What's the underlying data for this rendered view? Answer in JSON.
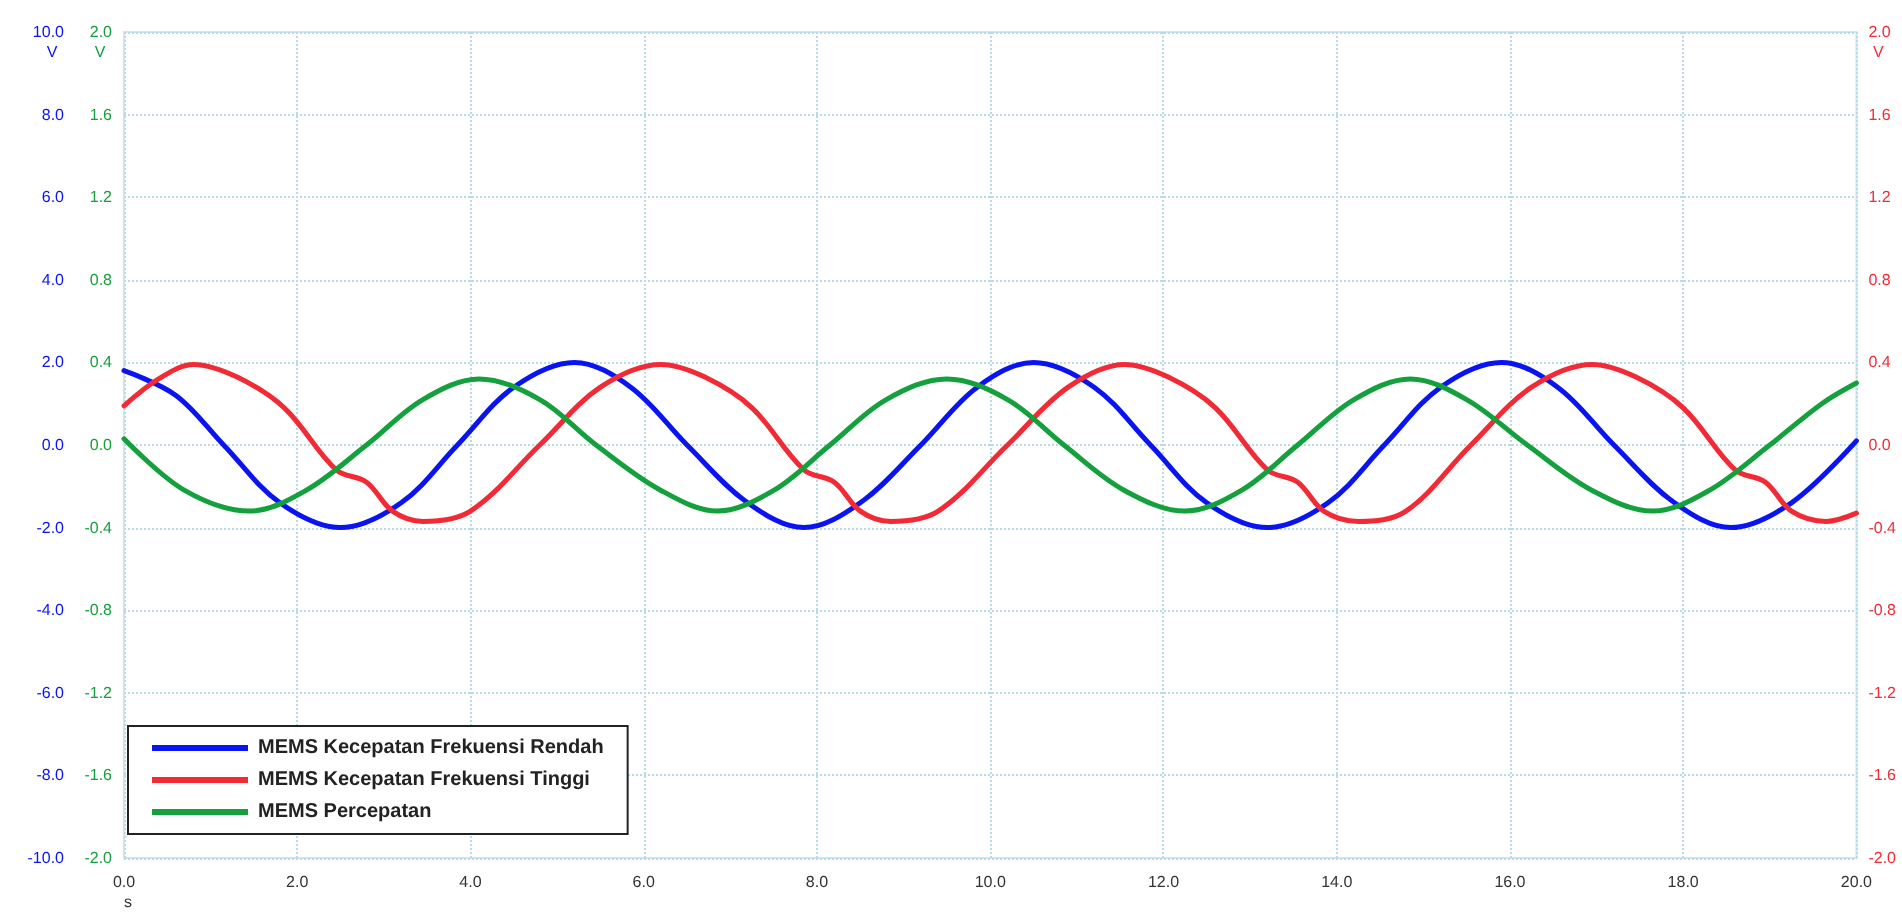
{
  "chart_data": {
    "type": "line",
    "xlabel": "s",
    "ylabel": "V",
    "y2label": "V",
    "y3label": "V",
    "xlim": [
      0,
      20
    ],
    "xticks": [
      {
        "value": 0,
        "label": "0.0"
      },
      {
        "value": 2,
        "label": "2.0"
      },
      {
        "value": 4,
        "label": "4.0"
      },
      {
        "value": 6,
        "label": "6.0"
      },
      {
        "value": 8,
        "label": "8.0"
      },
      {
        "value": 10,
        "label": "10.0"
      },
      {
        "value": 12,
        "label": "12.0"
      },
      {
        "value": 14,
        "label": "14.0"
      },
      {
        "value": 16,
        "label": "16.0"
      },
      {
        "value": 18,
        "label": "18.0"
      },
      {
        "value": 20,
        "label": "20.0"
      }
    ],
    "ylim": [
      -10,
      10
    ],
    "yticks": [
      {
        "value": -10,
        "label": "-10.0"
      },
      {
        "value": -8,
        "label": "-8.0"
      },
      {
        "value": -6,
        "label": "-6.0"
      },
      {
        "value": -4,
        "label": "-4.0"
      },
      {
        "value": -2,
        "label": "-2.0"
      },
      {
        "value": 0,
        "label": "0.0"
      },
      {
        "value": 2,
        "label": "2.0"
      },
      {
        "value": 4,
        "label": "4.0"
      },
      {
        "value": 6,
        "label": "6.0"
      },
      {
        "value": 8,
        "label": "8.0"
      },
      {
        "value": 10,
        "label": "10.0"
      }
    ],
    "y2lim": [
      -2,
      2
    ],
    "y2ticks": [
      {
        "value": -2,
        "label": "-2.0"
      },
      {
        "value": -1.6,
        "label": "-1.6"
      },
      {
        "value": -1.2,
        "label": "-1.2"
      },
      {
        "value": -0.8,
        "label": "-0.8"
      },
      {
        "value": -0.4,
        "label": "-0.4"
      },
      {
        "value": 0,
        "label": "0.0"
      },
      {
        "value": 0.4,
        "label": "0.4"
      },
      {
        "value": 0.8,
        "label": "0.8"
      },
      {
        "value": 1.2,
        "label": "1.2"
      },
      {
        "value": 1.6,
        "label": "1.6"
      },
      {
        "value": 2,
        "label": "2.0"
      }
    ],
    "y3lim": [
      -2,
      2
    ],
    "y3ticks": [
      {
        "value": -2,
        "label": "-2.0"
      },
      {
        "value": -1.6,
        "label": "-1.6"
      },
      {
        "value": -1.2,
        "label": "-1.2"
      },
      {
        "value": -0.8,
        "label": "-0.8"
      },
      {
        "value": -0.4,
        "label": "-0.4"
      },
      {
        "value": 0,
        "label": "0.0"
      },
      {
        "value": 0.4,
        "label": "0.4"
      },
      {
        "value": 0.8,
        "label": "0.8"
      },
      {
        "value": 1.2,
        "label": "1.2"
      },
      {
        "value": 1.6,
        "label": "1.6"
      },
      {
        "value": 2,
        "label": "2.0"
      }
    ],
    "grid": true,
    "legend": "bottom left",
    "marker": "none",
    "line_style": "solid",
    "series": [
      {
        "name": "MEMS Kecepatan Frekuensi Rendah",
        "color": "#0a14f0",
        "axis": "y",
        "x": [
          0,
          0.6,
          1.15,
          1.8,
          2.5,
          3.2,
          3.85,
          4.5,
          5.2,
          5.85,
          6.5,
          7.2,
          7.85,
          8.5,
          9.2,
          9.85,
          10.5,
          11.2,
          11.85,
          12.5,
          13.2,
          13.9,
          14.55,
          15.2,
          15.9,
          16.55,
          17.2,
          17.9,
          18.55,
          19.25,
          20
        ],
        "values": [
          1.8,
          1.2,
          0,
          -1.4,
          -2.0,
          -1.4,
          0,
          1.4,
          2.0,
          1.4,
          0,
          -1.4,
          -2.0,
          -1.4,
          0,
          1.4,
          2.0,
          1.4,
          0,
          -1.4,
          -2.0,
          -1.4,
          0,
          1.4,
          2.0,
          1.4,
          0,
          -1.4,
          -2.0,
          -1.4,
          0.1
        ]
      },
      {
        "name": "MEMS Kecepatan Frekuensi Tinggi",
        "color": "#f22a35",
        "axis": "y2",
        "x": [
          0,
          0.4,
          0.8,
          1.3,
          1.85,
          2.45,
          2.8,
          3.1,
          3.45,
          4.0,
          4.8,
          5.5,
          6.2,
          6.7,
          7.25,
          7.85,
          8.2,
          8.5,
          8.85,
          9.4,
          10.2,
          10.9,
          11.55,
          12.05,
          12.6,
          13.2,
          13.55,
          13.85,
          14.25,
          14.8,
          15.55,
          16.25,
          16.95,
          17.45,
          18.0,
          18.6,
          18.95,
          19.25,
          19.65,
          20
        ],
        "values": [
          0.19,
          0.32,
          0.39,
          0.33,
          0.18,
          -0.12,
          -0.18,
          -0.32,
          -0.37,
          -0.32,
          0,
          0.28,
          0.39,
          0.33,
          0.18,
          -0.12,
          -0.18,
          -0.32,
          -0.37,
          -0.32,
          0,
          0.28,
          0.39,
          0.33,
          0.18,
          -0.12,
          -0.18,
          -0.32,
          -0.37,
          -0.32,
          0,
          0.28,
          0.39,
          0.33,
          0.18,
          -0.12,
          -0.18,
          -0.32,
          -0.37,
          -0.33
        ]
      },
      {
        "name": "MEMS Percepatan",
        "color": "#14a03c",
        "axis": "y3",
        "x": [
          0,
          0.7,
          1.45,
          2.1,
          2.8,
          3.45,
          4.1,
          4.8,
          5.45,
          6.2,
          6.85,
          7.5,
          8.15,
          8.8,
          9.5,
          10.2,
          10.85,
          11.55,
          12.25,
          12.9,
          13.55,
          14.2,
          14.85,
          15.5,
          16.2,
          16.95,
          17.65,
          18.3,
          19,
          19.6,
          20
        ],
        "values": [
          0.03,
          -0.22,
          -0.32,
          -0.22,
          0,
          0.22,
          0.32,
          0.22,
          0,
          -0.22,
          -0.32,
          -0.22,
          0,
          0.22,
          0.32,
          0.22,
          0,
          -0.22,
          -0.32,
          -0.22,
          0,
          0.22,
          0.32,
          0.22,
          0,
          -0.22,
          -0.32,
          -0.22,
          0,
          0.2,
          0.3
        ]
      }
    ]
  }
}
